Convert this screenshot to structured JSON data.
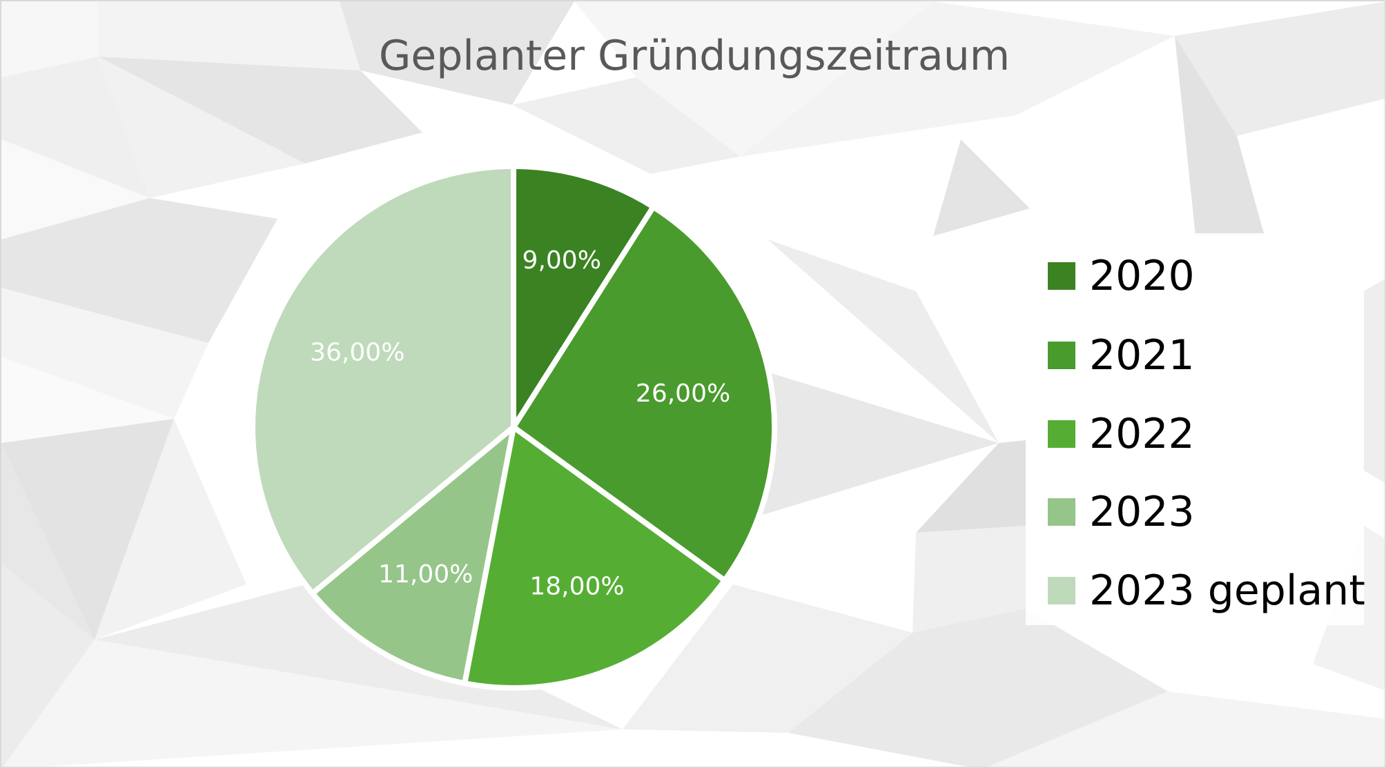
{
  "chart_data": {
    "type": "pie",
    "title": "Geplanter Gründungszeitraum",
    "categories": [
      "2020",
      "2021",
      "2022",
      "2023",
      "2023 geplant"
    ],
    "values": [
      9,
      26,
      18,
      11,
      36
    ],
    "data_labels": [
      "9,00%",
      "26,00%",
      "18,00%",
      "11,00%",
      "36,00%"
    ],
    "colors": [
      "#3b8222",
      "#4a9b2d",
      "#55ae33",
      "#96c58a",
      "#bfdabb"
    ],
    "label_color": "#ffffff",
    "legend_position": "right",
    "start_angle": "12 o'clock",
    "direction": "clockwise"
  },
  "legend": {
    "items": [
      {
        "label": "2020",
        "color": "#3b8222"
      },
      {
        "label": "2021",
        "color": "#4a9b2d"
      },
      {
        "label": "2022",
        "color": "#55ae33"
      },
      {
        "label": "2023",
        "color": "#96c58a"
      },
      {
        "label": "2023 geplant",
        "color": "#bfdabb"
      }
    ]
  }
}
